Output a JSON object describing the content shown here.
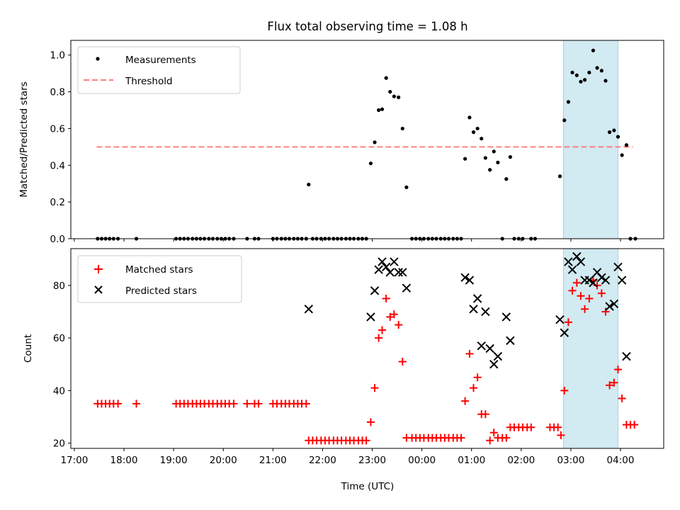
{
  "chart_data": {
    "title": "Flux total observing time = 1.08 h",
    "xlabel": "Time (UTC)",
    "x_tick_labels": [
      "17:00",
      "18:00",
      "19:00",
      "20:00",
      "21:00",
      "22:00",
      "23:00",
      "00:00",
      "01:00",
      "02:00",
      "03:00",
      "04:00"
    ],
    "x_tick_hours": [
      17,
      18,
      19,
      20,
      21,
      22,
      23,
      24,
      25,
      26,
      27,
      28
    ],
    "xlim_hours": [
      16.93,
      28.87
    ],
    "highlight_span_hours": [
      26.85,
      27.95
    ],
    "colors": {
      "measurements": "#000000",
      "threshold": "#ff7f7f",
      "matched": "#ff0000",
      "predicted": "#000000",
      "highlight": "#add8e6"
    },
    "charts": [
      {
        "type": "scatter",
        "ylabel": "Matched/Predicted stars",
        "ylim": [
          0,
          1.08
        ],
        "y_ticks": [
          0,
          0.2,
          0.4,
          0.6,
          0.8,
          1.0
        ],
        "y_tick_labels": [
          "0.0",
          "0.2",
          "0.4",
          "0.6",
          "0.8",
          "1.0"
        ],
        "legend": {
          "position": "upper-left",
          "entries": [
            "Measurements",
            "Threshold"
          ]
        },
        "threshold": {
          "y": 0.5,
          "x_start": 17.45,
          "x_end": 28.25
        },
        "measurements": [
          [
            17.47,
            0
          ],
          [
            17.55,
            0
          ],
          [
            17.63,
            0
          ],
          [
            17.71,
            0
          ],
          [
            17.79,
            0
          ],
          [
            17.88,
            0
          ],
          [
            18.25,
            0
          ],
          [
            19.05,
            0
          ],
          [
            19.13,
            0
          ],
          [
            19.21,
            0
          ],
          [
            19.29,
            0
          ],
          [
            19.38,
            0
          ],
          [
            19.46,
            0
          ],
          [
            19.54,
            0
          ],
          [
            19.62,
            0
          ],
          [
            19.71,
            0
          ],
          [
            19.79,
            0
          ],
          [
            19.88,
            0
          ],
          [
            19.96,
            0
          ],
          [
            20.04,
            0
          ],
          [
            20.12,
            0
          ],
          [
            20.21,
            0
          ],
          [
            20.48,
            0
          ],
          [
            20.63,
            0
          ],
          [
            20.71,
            0
          ],
          [
            21.0,
            0
          ],
          [
            21.08,
            0
          ],
          [
            21.17,
            0
          ],
          [
            21.25,
            0
          ],
          [
            21.33,
            0
          ],
          [
            21.42,
            0
          ],
          [
            21.5,
            0
          ],
          [
            21.58,
            0
          ],
          [
            21.67,
            0
          ],
          [
            21.72,
            0.295
          ],
          [
            21.8,
            0
          ],
          [
            21.88,
            0
          ],
          [
            21.97,
            0
          ],
          [
            22.05,
            0
          ],
          [
            22.13,
            0
          ],
          [
            22.22,
            0
          ],
          [
            22.3,
            0
          ],
          [
            22.38,
            0
          ],
          [
            22.47,
            0
          ],
          [
            22.55,
            0
          ],
          [
            22.63,
            0
          ],
          [
            22.72,
            0
          ],
          [
            22.8,
            0
          ],
          [
            22.88,
            0
          ],
          [
            22.97,
            0.41
          ],
          [
            23.05,
            0.525
          ],
          [
            23.13,
            0.7
          ],
          [
            23.2,
            0.705
          ],
          [
            23.28,
            0.875
          ],
          [
            23.36,
            0.8
          ],
          [
            23.44,
            0.775
          ],
          [
            23.53,
            0.77
          ],
          [
            23.61,
            0.6
          ],
          [
            23.69,
            0.28
          ],
          [
            23.8,
            0
          ],
          [
            23.88,
            0
          ],
          [
            23.96,
            0
          ],
          [
            24.04,
            0
          ],
          [
            24.13,
            0
          ],
          [
            24.21,
            0
          ],
          [
            24.29,
            0
          ],
          [
            24.38,
            0
          ],
          [
            24.46,
            0
          ],
          [
            24.54,
            0
          ],
          [
            24.63,
            0
          ],
          [
            24.71,
            0
          ],
          [
            24.79,
            0
          ],
          [
            24.87,
            0.435
          ],
          [
            24.96,
            0.66
          ],
          [
            25.04,
            0.58
          ],
          [
            25.12,
            0.6
          ],
          [
            25.2,
            0.545
          ],
          [
            25.28,
            0.44
          ],
          [
            25.37,
            0.375
          ],
          [
            25.45,
            0.475
          ],
          [
            25.53,
            0.415
          ],
          [
            25.62,
            0
          ],
          [
            25.7,
            0.325
          ],
          [
            25.78,
            0.445
          ],
          [
            25.86,
            0
          ],
          [
            25.95,
            0
          ],
          [
            26.03,
            0
          ],
          [
            26.2,
            0
          ],
          [
            26.28,
            0
          ],
          [
            26.78,
            0.34
          ],
          [
            26.87,
            0.645
          ],
          [
            26.95,
            0.745
          ],
          [
            27.03,
            0.905
          ],
          [
            27.12,
            0.89
          ],
          [
            27.2,
            0.855
          ],
          [
            27.28,
            0.865
          ],
          [
            27.37,
            0.905
          ],
          [
            27.45,
            1.025
          ],
          [
            27.53,
            0.93
          ],
          [
            27.62,
            0.915
          ],
          [
            27.7,
            0.86
          ],
          [
            27.78,
            0.58
          ],
          [
            27.87,
            0.59
          ],
          [
            27.95,
            0.555
          ],
          [
            28.03,
            0.455
          ],
          [
            28.12,
            0.51
          ],
          [
            28.2,
            0
          ],
          [
            28.3,
            0
          ]
        ]
      },
      {
        "type": "scatter",
        "ylabel": "Count",
        "ylim": [
          18,
          94
        ],
        "y_ticks": [
          20,
          40,
          60,
          80
        ],
        "y_tick_labels": [
          "20",
          "40",
          "60",
          "80"
        ],
        "legend": {
          "position": "upper-left",
          "entries": [
            "Matched stars",
            "Predicted stars"
          ]
        },
        "matched": [
          [
            17.47,
            35
          ],
          [
            17.55,
            35
          ],
          [
            17.63,
            35
          ],
          [
            17.71,
            35
          ],
          [
            17.79,
            35
          ],
          [
            17.88,
            35
          ],
          [
            18.25,
            35
          ],
          [
            19.05,
            35
          ],
          [
            19.13,
            35
          ],
          [
            19.21,
            35
          ],
          [
            19.29,
            35
          ],
          [
            19.38,
            35
          ],
          [
            19.46,
            35
          ],
          [
            19.54,
            35
          ],
          [
            19.62,
            35
          ],
          [
            19.71,
            35
          ],
          [
            19.79,
            35
          ],
          [
            19.88,
            35
          ],
          [
            19.96,
            35
          ],
          [
            20.04,
            35
          ],
          [
            20.12,
            35
          ],
          [
            20.21,
            35
          ],
          [
            20.48,
            35
          ],
          [
            20.63,
            35
          ],
          [
            20.71,
            35
          ],
          [
            21.0,
            35
          ],
          [
            21.08,
            35
          ],
          [
            21.17,
            35
          ],
          [
            21.25,
            35
          ],
          [
            21.33,
            35
          ],
          [
            21.42,
            35
          ],
          [
            21.5,
            35
          ],
          [
            21.58,
            35
          ],
          [
            21.67,
            35
          ],
          [
            21.72,
            21
          ],
          [
            21.8,
            21
          ],
          [
            21.88,
            21
          ],
          [
            21.97,
            21
          ],
          [
            22.05,
            21
          ],
          [
            22.13,
            21
          ],
          [
            22.22,
            21
          ],
          [
            22.3,
            21
          ],
          [
            22.38,
            21
          ],
          [
            22.47,
            21
          ],
          [
            22.55,
            21
          ],
          [
            22.63,
            21
          ],
          [
            22.72,
            21
          ],
          [
            22.8,
            21
          ],
          [
            22.88,
            21
          ],
          [
            22.97,
            28
          ],
          [
            23.05,
            41
          ],
          [
            23.13,
            60
          ],
          [
            23.2,
            63
          ],
          [
            23.28,
            75
          ],
          [
            23.36,
            68
          ],
          [
            23.44,
            69
          ],
          [
            23.53,
            65
          ],
          [
            23.61,
            51
          ],
          [
            23.69,
            22
          ],
          [
            23.8,
            22
          ],
          [
            23.88,
            22
          ],
          [
            23.96,
            22
          ],
          [
            24.04,
            22
          ],
          [
            24.13,
            22
          ],
          [
            24.21,
            22
          ],
          [
            24.29,
            22
          ],
          [
            24.38,
            22
          ],
          [
            24.46,
            22
          ],
          [
            24.54,
            22
          ],
          [
            24.63,
            22
          ],
          [
            24.71,
            22
          ],
          [
            24.79,
            22
          ],
          [
            24.87,
            36
          ],
          [
            24.96,
            54
          ],
          [
            25.04,
            41
          ],
          [
            25.12,
            45
          ],
          [
            25.2,
            31
          ],
          [
            25.28,
            31
          ],
          [
            25.37,
            21
          ],
          [
            25.45,
            24
          ],
          [
            25.53,
            22
          ],
          [
            25.62,
            22
          ],
          [
            25.7,
            22
          ],
          [
            25.78,
            26
          ],
          [
            25.86,
            26
          ],
          [
            25.95,
            26
          ],
          [
            26.03,
            26
          ],
          [
            26.12,
            26
          ],
          [
            26.2,
            26
          ],
          [
            26.58,
            26
          ],
          [
            26.66,
            26
          ],
          [
            26.74,
            26
          ],
          [
            26.8,
            23
          ],
          [
            26.87,
            40
          ],
          [
            26.95,
            66
          ],
          [
            27.03,
            78
          ],
          [
            27.12,
            81
          ],
          [
            27.2,
            76
          ],
          [
            27.28,
            71
          ],
          [
            27.37,
            75
          ],
          [
            27.45,
            82
          ],
          [
            27.53,
            80
          ],
          [
            27.62,
            77
          ],
          [
            27.7,
            70
          ],
          [
            27.78,
            42
          ],
          [
            27.87,
            43
          ],
          [
            27.95,
            48
          ],
          [
            28.03,
            37
          ],
          [
            28.12,
            27
          ],
          [
            28.2,
            27
          ],
          [
            28.28,
            27
          ]
        ],
        "predicted": [
          [
            21.72,
            71
          ],
          [
            22.97,
            68
          ],
          [
            23.05,
            78
          ],
          [
            23.13,
            86
          ],
          [
            23.2,
            89
          ],
          [
            23.28,
            87
          ],
          [
            23.36,
            85
          ],
          [
            23.44,
            89
          ],
          [
            23.53,
            85
          ],
          [
            23.61,
            85
          ],
          [
            23.69,
            79
          ],
          [
            24.87,
            83
          ],
          [
            24.96,
            82
          ],
          [
            25.04,
            71
          ],
          [
            25.12,
            75
          ],
          [
            25.2,
            57
          ],
          [
            25.28,
            70
          ],
          [
            25.37,
            56
          ],
          [
            25.45,
            50
          ],
          [
            25.53,
            53
          ],
          [
            25.7,
            68
          ],
          [
            25.78,
            59
          ],
          [
            26.78,
            67
          ],
          [
            26.87,
            62
          ],
          [
            26.95,
            89
          ],
          [
            27.03,
            86
          ],
          [
            27.12,
            91
          ],
          [
            27.2,
            89
          ],
          [
            27.28,
            82
          ],
          [
            27.37,
            82
          ],
          [
            27.45,
            81
          ],
          [
            27.53,
            85
          ],
          [
            27.62,
            83
          ],
          [
            27.7,
            82
          ],
          [
            27.78,
            72
          ],
          [
            27.87,
            73
          ],
          [
            27.95,
            87
          ],
          [
            28.03,
            82
          ],
          [
            28.12,
            53
          ]
        ]
      }
    ]
  }
}
